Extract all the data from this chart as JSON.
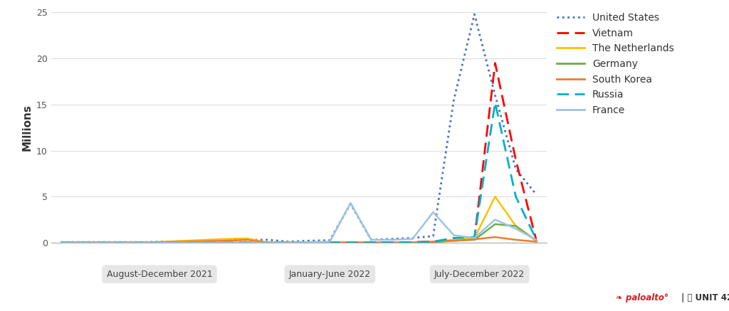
{
  "title": "",
  "ylabel": "Millions",
  "ylim": [
    0,
    25
  ],
  "yticks": [
    0,
    5,
    10,
    15,
    20,
    25
  ],
  "background_color": "#ffffff",
  "period_labels": [
    "August-December 2021",
    "January-June 2022",
    "July-December 2022"
  ],
  "series": {
    "United States": {
      "color": "#4472C4",
      "linestyle": "dotted",
      "linewidth": 2.0,
      "values": [
        0.05,
        0.05,
        0.05,
        0.05,
        0.05,
        0.1,
        0.15,
        0.2,
        0.3,
        0.3,
        0.3,
        0.1,
        0.2,
        0.25,
        4.2,
        0.3,
        0.4,
        0.5,
        0.7,
        15.5,
        24.8,
        16.0,
        8.0,
        5.2
      ]
    },
    "Vietnam": {
      "color": "#FF0000",
      "linestyle": "dashed",
      "linewidth": 2.0,
      "values": [
        0.0,
        0.0,
        0.0,
        0.0,
        0.0,
        0.0,
        0.0,
        0.0,
        0.0,
        0.0,
        0.0,
        0.0,
        0.0,
        0.0,
        0.0,
        0.0,
        0.0,
        0.05,
        0.1,
        0.3,
        0.4,
        19.5,
        9.0,
        0.2
      ]
    },
    "The Netherlands": {
      "color": "#FFC000",
      "linestyle": "solid",
      "linewidth": 1.8,
      "values": [
        0.0,
        0.0,
        0.0,
        0.0,
        0.0,
        0.1,
        0.2,
        0.3,
        0.4,
        0.45,
        0.0,
        0.0,
        0.0,
        0.0,
        0.0,
        0.0,
        0.0,
        0.0,
        0.1,
        0.3,
        0.5,
        5.0,
        1.8,
        0.2
      ]
    },
    "Germany": {
      "color": "#70AD47",
      "linestyle": "solid",
      "linewidth": 1.8,
      "values": [
        0.0,
        0.0,
        0.0,
        0.0,
        0.0,
        0.0,
        0.0,
        0.0,
        0.0,
        0.0,
        0.0,
        0.0,
        0.0,
        0.0,
        0.0,
        0.0,
        0.0,
        0.0,
        0.05,
        0.2,
        0.3,
        2.0,
        1.8,
        0.2
      ]
    },
    "South Korea": {
      "color": "#ED7D31",
      "linestyle": "solid",
      "linewidth": 1.8,
      "values": [
        0.0,
        0.0,
        0.0,
        0.0,
        0.0,
        0.05,
        0.1,
        0.15,
        0.2,
        0.3,
        0.0,
        0.0,
        0.0,
        0.0,
        0.0,
        0.0,
        0.0,
        0.0,
        0.1,
        0.2,
        0.35,
        0.6,
        0.3,
        0.1
      ]
    },
    "Russia": {
      "color": "#00B0C8",
      "linestyle": "dashed",
      "linewidth": 2.0,
      "values": [
        0.0,
        0.0,
        0.0,
        0.0,
        0.0,
        0.0,
        0.0,
        0.0,
        0.0,
        0.0,
        0.0,
        0.0,
        0.0,
        0.0,
        0.0,
        0.0,
        0.0,
        0.0,
        0.1,
        0.5,
        0.6,
        15.2,
        5.0,
        0.3
      ]
    },
    "France": {
      "color": "#9DC3E6",
      "linestyle": "solid",
      "linewidth": 1.8,
      "values": [
        0.0,
        0.0,
        0.0,
        0.0,
        0.0,
        0.0,
        0.0,
        0.0,
        0.0,
        0.0,
        0.0,
        0.0,
        0.05,
        0.1,
        4.3,
        0.3,
        0.3,
        0.4,
        3.3,
        0.8,
        0.5,
        2.5,
        1.5,
        0.3
      ]
    }
  },
  "period_dividers": [
    9.5,
    16.5
  ],
  "n_points": 24,
  "period_centers": [
    4.75,
    13.0,
    20.25
  ]
}
